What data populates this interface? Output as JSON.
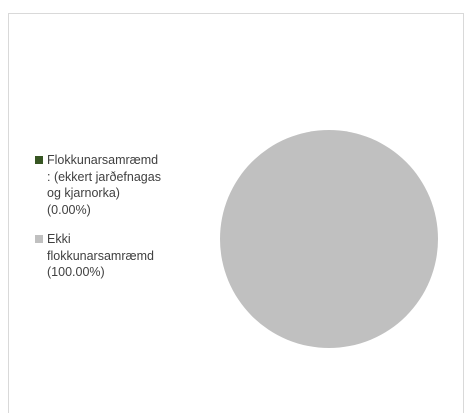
{
  "chart_data": {
    "type": "pie",
    "title": "",
    "legend_position": "left",
    "slices": [
      {
        "label": "Flokkunarsamræmd\n: (ekkert jarðefnagas\nog kjarnorka)\n(0.00%)",
        "name": "Flokkunarsamræmd : (ekkert jarðefnagas og kjarnorka)",
        "value": 0.0,
        "color": "#375623"
      },
      {
        "label": "Ekki\nflokkunarsamræmd\n(100.00%)",
        "name": "Ekki flokkunarsamræmd",
        "value": 100.0,
        "color": "#c0c0c0"
      }
    ]
  }
}
